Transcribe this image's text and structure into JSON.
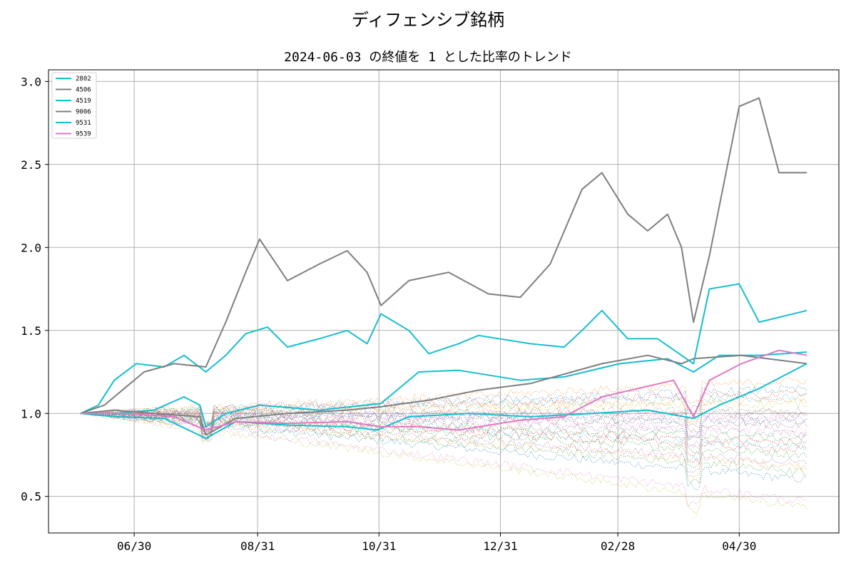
{
  "figure": {
    "suptitle": "ディフェンシブ銘柄",
    "title": "2024-06-03 の終値を 1 とした比率のトレンド"
  },
  "chart_data": {
    "type": "line",
    "title": "2024-06-03 の終値を 1 とした比率のトレンド",
    "xlabel": "",
    "ylabel": "",
    "x_start": "2024-06-03",
    "x_end": "2025-06-03",
    "x_ticks": [
      {
        "date": "2024-06-30",
        "label": "06/30"
      },
      {
        "date": "2024-08-31",
        "label": "08/31"
      },
      {
        "date": "2024-10-31",
        "label": "10/31"
      },
      {
        "date": "2024-12-31",
        "label": "12/31"
      },
      {
        "date": "2025-02-28",
        "label": "02/28"
      },
      {
        "date": "2025-04-30",
        "label": "04/30"
      }
    ],
    "ylim": [
      0.28,
      3.07
    ],
    "y_ticks": [
      0.5,
      1.0,
      1.5,
      2.0,
      2.5,
      3.0
    ],
    "y_tick_labels": [
      "0.5",
      "1.0",
      "1.5",
      "2.0",
      "2.5",
      "3.0"
    ],
    "grid": true,
    "legend_position": "top-left",
    "highlighted_series": [
      {
        "name": "2802",
        "color": "#17becf",
        "points": [
          [
            "2024-06-03",
            1.0
          ],
          [
            "2024-06-20",
            1.0
          ],
          [
            "2024-07-10",
            1.02
          ],
          [
            "2024-07-25",
            1.1
          ],
          [
            "2024-08-02",
            1.05
          ],
          [
            "2024-08-05",
            0.92
          ],
          [
            "2024-08-15",
            1.0
          ],
          [
            "2024-09-01",
            1.05
          ],
          [
            "2024-10-01",
            1.02
          ],
          [
            "2024-11-01",
            1.06
          ],
          [
            "2024-11-20",
            1.25
          ],
          [
            "2024-12-10",
            1.26
          ],
          [
            "2025-01-10",
            1.2
          ],
          [
            "2025-02-01",
            1.22
          ],
          [
            "2025-03-01",
            1.3
          ],
          [
            "2025-03-25",
            1.33
          ],
          [
            "2025-04-07",
            1.25
          ],
          [
            "2025-04-20",
            1.35
          ],
          [
            "2025-05-10",
            1.35
          ],
          [
            "2025-06-03",
            1.37
          ]
        ]
      },
      {
        "name": "4506",
        "color": "#7f7f7f",
        "points": [
          [
            "2024-06-03",
            1.0
          ],
          [
            "2024-06-20",
            1.02
          ],
          [
            "2024-07-10",
            1.0
          ],
          [
            "2024-08-02",
            0.98
          ],
          [
            "2024-08-05",
            0.87
          ],
          [
            "2024-08-20",
            0.97
          ],
          [
            "2024-09-15",
            1.0
          ],
          [
            "2024-10-15",
            1.02
          ],
          [
            "2024-11-01",
            1.04
          ],
          [
            "2024-11-25",
            1.08
          ],
          [
            "2024-12-20",
            1.14
          ],
          [
            "2025-01-15",
            1.18
          ],
          [
            "2025-02-05",
            1.25
          ],
          [
            "2025-02-20",
            1.3
          ],
          [
            "2025-03-15",
            1.35
          ],
          [
            "2025-04-01",
            1.3
          ],
          [
            "2025-04-07",
            1.33
          ],
          [
            "2025-05-01",
            1.35
          ],
          [
            "2025-06-03",
            1.3
          ]
        ]
      },
      {
        "name": "4519",
        "color": "#17becf",
        "points": [
          [
            "2024-06-03",
            1.0
          ],
          [
            "2024-06-12",
            1.05
          ],
          [
            "2024-06-20",
            1.2
          ],
          [
            "2024-07-01",
            1.3
          ],
          [
            "2024-07-15",
            1.28
          ],
          [
            "2024-07-25",
            1.35
          ],
          [
            "2024-08-05",
            1.25
          ],
          [
            "2024-08-15",
            1.35
          ],
          [
            "2024-08-25",
            1.48
          ],
          [
            "2024-09-05",
            1.52
          ],
          [
            "2024-09-15",
            1.4
          ],
          [
            "2024-10-01",
            1.45
          ],
          [
            "2024-10-15",
            1.5
          ],
          [
            "2024-10-25",
            1.42
          ],
          [
            "2024-11-01",
            1.6
          ],
          [
            "2024-11-15",
            1.5
          ],
          [
            "2024-11-25",
            1.36
          ],
          [
            "2024-12-10",
            1.42
          ],
          [
            "2024-12-20",
            1.47
          ],
          [
            "2025-01-15",
            1.42
          ],
          [
            "2025-02-01",
            1.4
          ],
          [
            "2025-02-10",
            1.5
          ],
          [
            "2025-02-20",
            1.62
          ],
          [
            "2025-03-05",
            1.45
          ],
          [
            "2025-03-20",
            1.45
          ],
          [
            "2025-04-07",
            1.3
          ],
          [
            "2025-04-15",
            1.75
          ],
          [
            "2025-04-30",
            1.78
          ],
          [
            "2025-05-10",
            1.55
          ],
          [
            "2025-06-03",
            1.62
          ]
        ]
      },
      {
        "name": "9006",
        "color": "#7f7f7f",
        "points": [
          [
            "2024-06-03",
            1.0
          ],
          [
            "2024-06-15",
            1.05
          ],
          [
            "2024-06-25",
            1.15
          ],
          [
            "2024-07-05",
            1.25
          ],
          [
            "2024-07-20",
            1.3
          ],
          [
            "2024-08-05",
            1.28
          ],
          [
            "2024-08-15",
            1.55
          ],
          [
            "2024-08-25",
            1.85
          ],
          [
            "2024-09-01",
            2.05
          ],
          [
            "2024-09-15",
            1.8
          ],
          [
            "2024-10-01",
            1.9
          ],
          [
            "2024-10-15",
            1.98
          ],
          [
            "2024-10-25",
            1.85
          ],
          [
            "2024-11-01",
            1.65
          ],
          [
            "2024-11-15",
            1.8
          ],
          [
            "2024-12-05",
            1.85
          ],
          [
            "2024-12-25",
            1.72
          ],
          [
            "2025-01-10",
            1.7
          ],
          [
            "2025-01-25",
            1.9
          ],
          [
            "2025-02-10",
            2.35
          ],
          [
            "2025-02-20",
            2.45
          ],
          [
            "2025-03-05",
            2.2
          ],
          [
            "2025-03-15",
            2.1
          ],
          [
            "2025-03-25",
            2.2
          ],
          [
            "2025-04-01",
            2.0
          ],
          [
            "2025-04-07",
            1.55
          ],
          [
            "2025-04-15",
            1.95
          ],
          [
            "2025-04-30",
            2.85
          ],
          [
            "2025-05-10",
            2.9
          ],
          [
            "2025-05-20",
            2.45
          ],
          [
            "2025-06-03",
            2.45
          ]
        ]
      },
      {
        "name": "9531",
        "color": "#17becf",
        "points": [
          [
            "2024-06-03",
            1.0
          ],
          [
            "2024-06-20",
            0.98
          ],
          [
            "2024-07-15",
            0.97
          ],
          [
            "2024-08-05",
            0.85
          ],
          [
            "2024-08-20",
            0.95
          ],
          [
            "2024-09-15",
            0.93
          ],
          [
            "2024-10-15",
            0.92
          ],
          [
            "2024-10-30",
            0.9
          ],
          [
            "2024-11-15",
            0.98
          ],
          [
            "2024-12-15",
            1.0
          ],
          [
            "2025-01-15",
            0.98
          ],
          [
            "2025-02-15",
            1.0
          ],
          [
            "2025-03-15",
            1.02
          ],
          [
            "2025-04-07",
            0.97
          ],
          [
            "2025-04-20",
            1.05
          ],
          [
            "2025-05-10",
            1.15
          ],
          [
            "2025-06-03",
            1.3
          ]
        ]
      },
      {
        "name": "9539",
        "color": "#e377c2",
        "points": [
          [
            "2024-06-03",
            1.0
          ],
          [
            "2024-06-25",
            1.0
          ],
          [
            "2024-07-20",
            0.98
          ],
          [
            "2024-08-05",
            0.9
          ],
          [
            "2024-08-20",
            0.95
          ],
          [
            "2024-09-15",
            0.94
          ],
          [
            "2024-10-15",
            0.95
          ],
          [
            "2024-11-01",
            0.92
          ],
          [
            "2024-11-20",
            0.92
          ],
          [
            "2024-12-10",
            0.9
          ],
          [
            "2025-01-10",
            0.96
          ],
          [
            "2025-02-01",
            0.98
          ],
          [
            "2025-02-20",
            1.1
          ],
          [
            "2025-03-10",
            1.15
          ],
          [
            "2025-03-28",
            1.2
          ],
          [
            "2025-04-07",
            0.98
          ],
          [
            "2025-04-15",
            1.2
          ],
          [
            "2025-05-01",
            1.3
          ],
          [
            "2025-05-20",
            1.38
          ],
          [
            "2025-06-03",
            1.35
          ]
        ]
      }
    ],
    "background_series": [
      {
        "color": "#1f77b4",
        "end_value": 0.6
      },
      {
        "color": "#ff7f0e",
        "end_value": 0.68
      },
      {
        "color": "#2ca02c",
        "end_value": 0.75
      },
      {
        "color": "#d62728",
        "end_value": 0.82
      },
      {
        "color": "#9467bd",
        "end_value": 0.88
      },
      {
        "color": "#8c564b",
        "end_value": 0.93
      },
      {
        "color": "#e377c2",
        "end_value": 0.97
      },
      {
        "color": "#7f7f7f",
        "end_value": 1.02
      },
      {
        "color": "#bcbd22",
        "end_value": 1.06
      },
      {
        "color": "#17becf",
        "end_value": 1.1
      },
      {
        "color": "#1f77b4",
        "end_value": 1.15
      },
      {
        "color": "#ff7f0e",
        "end_value": 1.2
      },
      {
        "color": "#2ca02c",
        "end_value": 0.85
      },
      {
        "color": "#d62728",
        "end_value": 0.78
      },
      {
        "color": "#9467bd",
        "end_value": 0.7
      },
      {
        "color": "#8c564b",
        "end_value": 1.0
      },
      {
        "color": "#e377c2",
        "end_value": 0.9
      },
      {
        "color": "#bcbd22",
        "end_value": 0.43
      },
      {
        "color": "#e377c2",
        "end_value": 0.47
      },
      {
        "color": "#1f77b4",
        "end_value": 0.95
      },
      {
        "color": "#ff7f0e",
        "end_value": 1.08
      },
      {
        "color": "#2ca02c",
        "end_value": 0.65
      },
      {
        "color": "#d62728",
        "end_value": 1.12
      },
      {
        "color": "#9467bd",
        "end_value": 0.98
      },
      {
        "color": "#17becf",
        "end_value": 0.8
      }
    ]
  }
}
